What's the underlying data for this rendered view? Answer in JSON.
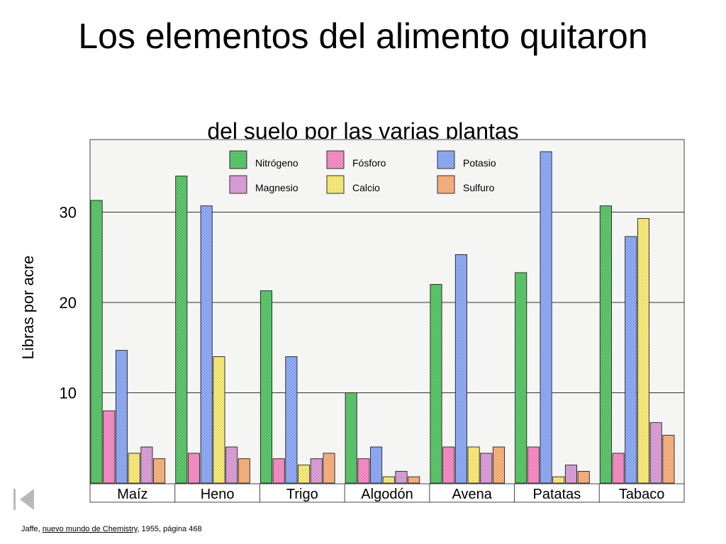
{
  "slide": {
    "title": "Los elementos del alimento quitaron",
    "subtitle": "del suelo por las varias plantas",
    "source": {
      "author": "Jaffe, ",
      "book": "nuevo mundo de Chemistry",
      "rest": ", 1955, página 468"
    }
  },
  "colors": {
    "Nitrógeno": "#5cc46a",
    "Fósforo": "#f48cc4",
    "Potasio": "#8ea9f2",
    "Magnesio": "#d99ed6",
    "Calcio": "#f6e879",
    "Sulfuro": "#f5b07e",
    "plot_background": "#f5f5f3"
  },
  "chart_data": {
    "type": "bar",
    "ylabel": "Libras por acre",
    "xlabel": "",
    "ylim": [
      0,
      38
    ],
    "yticks": [
      10,
      20,
      30
    ],
    "grid": true,
    "legend_position": "top",
    "categories": [
      "Maíz",
      "Heno",
      "Trigo",
      "Algodón",
      "Avena",
      "Patatas",
      "Tabaco"
    ],
    "series": [
      {
        "name": "Nitrógeno",
        "values": [
          31.3,
          34.0,
          21.3,
          10.0,
          22.0,
          23.3,
          30.7
        ]
      },
      {
        "name": "Fósforo",
        "values": [
          8.0,
          3.3,
          2.7,
          2.7,
          4.0,
          4.0,
          3.3
        ]
      },
      {
        "name": "Potasio",
        "values": [
          14.7,
          30.7,
          14.0,
          4.0,
          25.3,
          36.7,
          27.3
        ]
      },
      {
        "name": "Calcio",
        "values": [
          3.3,
          14.0,
          2.0,
          0.7,
          4.0,
          0.7,
          29.3
        ]
      },
      {
        "name": "Magnesio",
        "values": [
          4.0,
          4.0,
          2.7,
          1.3,
          3.3,
          2.0,
          6.7
        ]
      },
      {
        "name": "Sulfuro",
        "values": [
          2.7,
          2.7,
          3.3,
          0.7,
          4.0,
          1.3,
          5.3
        ]
      }
    ]
  }
}
